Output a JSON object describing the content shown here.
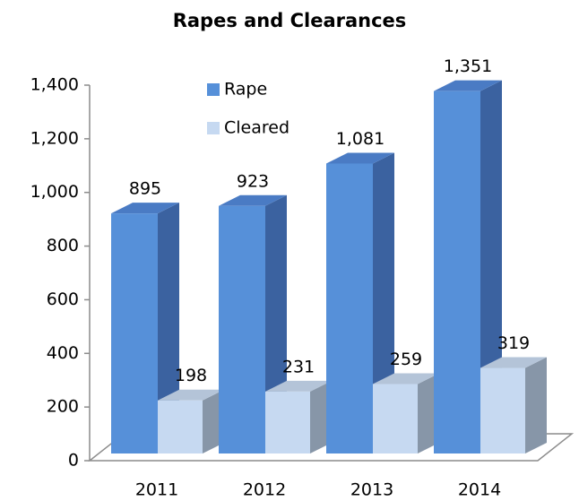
{
  "chart_data": {
    "type": "bar3d",
    "title": "Rapes and Clearances",
    "categories": [
      "2011",
      "2012",
      "2013",
      "2014"
    ],
    "series": [
      {
        "name": "Rape",
        "color": "#5690d9",
        "values": [
          895,
          923,
          1081,
          1351
        ],
        "value_labels": [
          "895",
          "923",
          "1,081",
          "1,351"
        ]
      },
      {
        "name": "Cleared",
        "color": "#c6d9f1",
        "values": [
          198,
          231,
          259,
          319
        ]
      }
    ],
    "ylim": [
      0,
      1400
    ],
    "yticks": [
      0,
      200,
      400,
      600,
      800,
      {
        "value": 1000,
        "label": "1,000"
      },
      {
        "value": 1200,
        "label": "1,200"
      },
      {
        "value": 1400,
        "label": "1,400"
      }
    ],
    "legend": "top"
  }
}
